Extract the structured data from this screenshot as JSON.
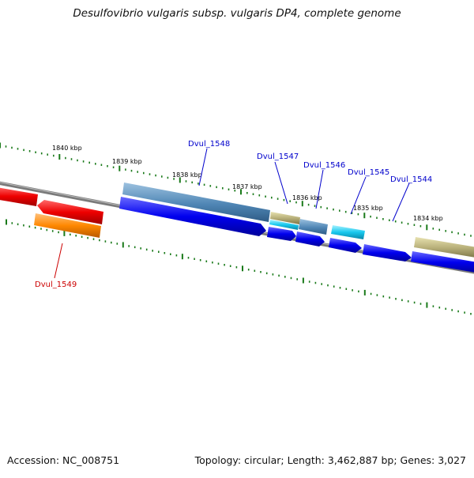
{
  "title": "Desulfovibrio vulgaris subsp. vulgaris DP4, complete genome",
  "footer": {
    "accession": "Accession: NC_008751",
    "summary": "Topology: circular; Length: 3,462,887 bp; Genes: 3,027"
  },
  "ruler": {
    "labels": [
      {
        "text": "1840 kbp"
      },
      {
        "text": "1839 kbp"
      },
      {
        "text": "1838 kbp"
      },
      {
        "text": "1837 kbp"
      },
      {
        "text": "1836 kbp"
      },
      {
        "text": "1835 kbp"
      },
      {
        "text": "1834 kbp"
      }
    ]
  },
  "gene_labels": [
    {
      "name": "Dvul_1548",
      "color": "#0000cc"
    },
    {
      "name": "Dvul_1547",
      "color": "#0000cc"
    },
    {
      "name": "Dvul_1546",
      "color": "#0000cc"
    },
    {
      "name": "Dvul_1545",
      "color": "#0000cc"
    },
    {
      "name": "Dvul_1544",
      "color": "#0000cc"
    },
    {
      "name": "Dvul_1549",
      "color": "#cc0000"
    }
  ],
  "colors": {
    "backbone": "#7a7a7a",
    "tick": "#1a7a1a",
    "red": "#ee0000",
    "orange": "#ff8800",
    "steel_blue": "#4f86b5",
    "blue": "#0000ee",
    "olive": "#b8b07a",
    "cyan": "#18c8ee"
  }
}
